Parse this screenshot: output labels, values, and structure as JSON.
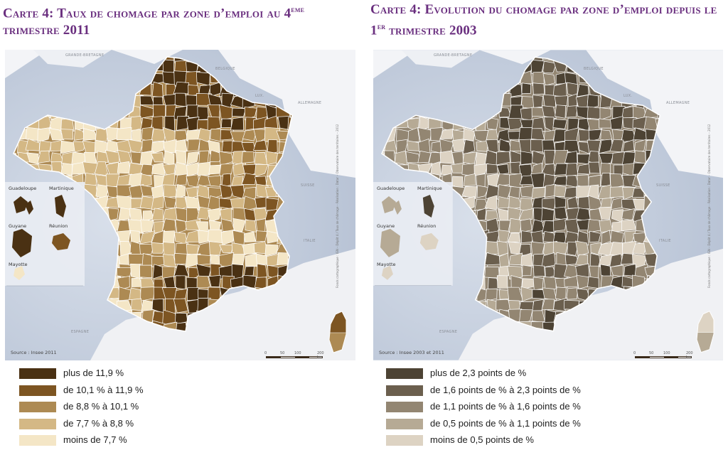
{
  "map1": {
    "title_prefix": "Carte 4: Taux de chomage par zone d’emploi au 4",
    "title_sup": "eme",
    "title_suffix": " trimestre 2011",
    "source": "Source : Insee 2011",
    "labels": {
      "gb": "Grande-Bretagne",
      "be": "Belgique",
      "lux": "Lux.",
      "de": "Allemagne",
      "ch": "Suisse",
      "it": "Italie",
      "es": "Espagne"
    },
    "dom": {
      "gua": "Guadeloupe",
      "mar": "Martinique",
      "guy": "Guyane",
      "reu": "Réunion",
      "may": "Mayotte"
    },
    "credit": "Fonds cartographique : IGN – Dépôt 4 / Taux de chômage – Réalisation : Datar – Observatoire des territoires – 2012",
    "scale": {
      "t0": "0",
      "t1": "50",
      "t2": "100",
      "t3": "200 km"
    },
    "legend": [
      {
        "label": "plus de 11,9 %",
        "color": "#4a3113"
      },
      {
        "label": "de 10,1 % à 11,9 %",
        "color": "#7d5522"
      },
      {
        "label": "de 8,8 % à 10,1 %",
        "color": "#ad8a53"
      },
      {
        "label": "de 7,7 % à 8,8 %",
        "color": "#d4b885"
      },
      {
        "label": "moins de 7,7 %",
        "color": "#f4e6c6"
      }
    ]
  },
  "map2": {
    "title_prefix": "Carte 4: Evolution du chomage par zone d’emploi depuis le 1",
    "title_sup": "er",
    "title_suffix": " trimestre 2003",
    "source": "Source : Insee 2003 et 2011",
    "labels": {
      "gb": "Grande-Bretagne",
      "be": "Belgique",
      "lux": "Lux.",
      "de": "Allemagne",
      "ch": "Suisse",
      "it": "Italie",
      "es": "Espagne"
    },
    "dom": {
      "gua": "Guadeloupe",
      "mar": "Martinique",
      "guy": "Guyane",
      "reu": "Réunion",
      "may": "Mayotte"
    },
    "credit": "Fonds cartographique : IGN – Dépôt 4 / Taux de chômage – Réalisation : Datar – Observatoire des territoires – 2012",
    "scale": {
      "t0": "0",
      "t1": "50",
      "t2": "100",
      "t3": "200 km"
    },
    "legend": [
      {
        "label": "plus de 2,3 points de %",
        "color": "#4d4334"
      },
      {
        "label": "de 1,6 points de % à 2,3 points de %",
        "color": "#6b5f4e"
      },
      {
        "label": "de 1,1 points de % à 1,6 points de %",
        "color": "#938672"
      },
      {
        "label": "de 0,5 points de % à 1,1 points de %",
        "color": "#b6aa95"
      },
      {
        "label": "moins de 0,5 points de %",
        "color": "#ddd3c3"
      }
    ]
  }
}
